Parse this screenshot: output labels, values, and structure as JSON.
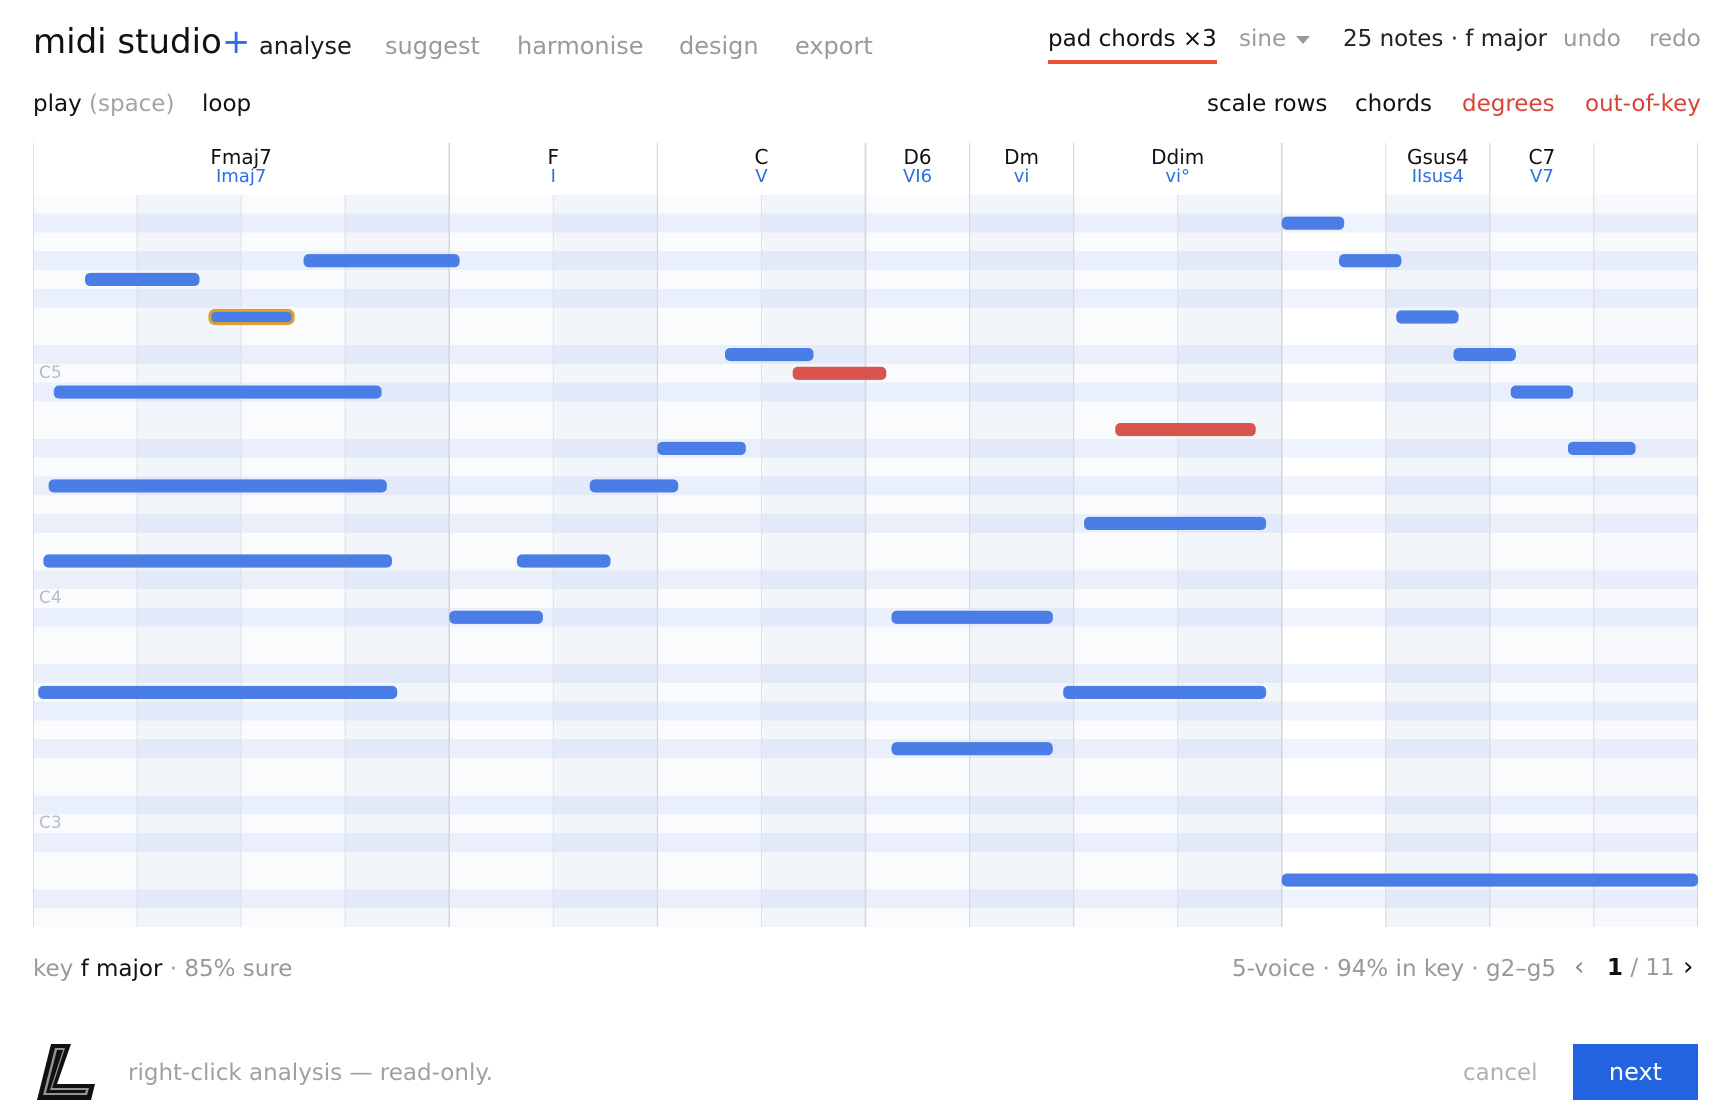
{
  "app": {
    "name": "midi studio",
    "plus": "+"
  },
  "nav": {
    "tabs": [
      {
        "label": "analyse",
        "active": true
      },
      {
        "label": "suggest",
        "active": false
      },
      {
        "label": "harmonise",
        "active": false
      },
      {
        "label": "design",
        "active": false
      },
      {
        "label": "export",
        "active": false
      }
    ]
  },
  "header": {
    "preset": "pad chords ×3",
    "waveform": "sine",
    "status": "25 notes · f major",
    "undo": "undo",
    "redo": "redo"
  },
  "toolbar": {
    "play": "play",
    "play_hint": "(space)",
    "loop": "loop",
    "scale_rows": "scale rows",
    "chords": "chords",
    "degrees": "degrees",
    "out_of_key": "out-of-key"
  },
  "roll": {
    "beats": 16,
    "top_pitch": 81,
    "bottom_pitch": 43,
    "octave_labels": [
      {
        "label": "C5",
        "pitch": 72
      },
      {
        "label": "C4",
        "pitch": 60
      },
      {
        "label": "C3",
        "pitch": 48
      }
    ],
    "chords": [
      {
        "name": "Fmaj7",
        "degree": "Imaj7",
        "start": 0,
        "end": 4
      },
      {
        "name": "F",
        "degree": "I",
        "start": 4,
        "end": 6
      },
      {
        "name": "C",
        "degree": "V",
        "start": 6,
        "end": 8
      },
      {
        "name": "D6",
        "degree": "VI6",
        "start": 8,
        "end": 9
      },
      {
        "name": "Dm",
        "degree": "vi",
        "start": 9,
        "end": 10
      },
      {
        "name": "Ddim",
        "degree": "vi°",
        "start": 10,
        "end": 12
      },
      {
        "name": "Gsus4",
        "degree": "IIsus4",
        "start": 13,
        "end": 14
      },
      {
        "name": "C7",
        "degree": "V7",
        "start": 14,
        "end": 15
      }
    ],
    "notes": [
      {
        "pitch": 80,
        "start": 12.0,
        "end": 12.6
      },
      {
        "pitch": 78,
        "start": 2.6,
        "end": 4.1
      },
      {
        "pitch": 78,
        "start": 12.55,
        "end": 13.15
      },
      {
        "pitch": 77,
        "start": 0.5,
        "end": 1.6
      },
      {
        "pitch": 75,
        "start": 1.7,
        "end": 2.5,
        "selected": true
      },
      {
        "pitch": 75,
        "start": 13.1,
        "end": 13.7
      },
      {
        "pitch": 73,
        "start": 6.65,
        "end": 7.5
      },
      {
        "pitch": 73,
        "start": 13.65,
        "end": 14.25
      },
      {
        "pitch": 72,
        "start": 7.3,
        "end": 8.2,
        "out_of_key": true
      },
      {
        "pitch": 71,
        "start": 0.2,
        "end": 3.35
      },
      {
        "pitch": 71,
        "start": 14.2,
        "end": 14.8
      },
      {
        "pitch": 69,
        "start": 10.4,
        "end": 11.75,
        "out_of_key": true
      },
      {
        "pitch": 68,
        "start": 6.0,
        "end": 6.85
      },
      {
        "pitch": 68,
        "start": 14.75,
        "end": 15.4
      },
      {
        "pitch": 66,
        "start": 0.15,
        "end": 3.4
      },
      {
        "pitch": 66,
        "start": 5.35,
        "end": 6.2
      },
      {
        "pitch": 64,
        "start": 10.1,
        "end": 11.85
      },
      {
        "pitch": 62,
        "start": 0.1,
        "end": 3.45
      },
      {
        "pitch": 62,
        "start": 4.65,
        "end": 5.55
      },
      {
        "pitch": 59,
        "start": 4.0,
        "end": 4.9
      },
      {
        "pitch": 59,
        "start": 8.25,
        "end": 9.8
      },
      {
        "pitch": 55,
        "start": 0.05,
        "end": 3.5
      },
      {
        "pitch": 55,
        "start": 9.9,
        "end": 11.85
      },
      {
        "pitch": 52,
        "start": 8.25,
        "end": 9.8
      },
      {
        "pitch": 45,
        "start": 12.0,
        "end": 16.0
      }
    ]
  },
  "footer": {
    "key_prefix": "key",
    "key_root": "f",
    "key_mode": "major",
    "confidence": "· 85% sure",
    "stats": "5-voice · 94% in key · g2–g5",
    "page_current": "1",
    "page_total": "/ 11",
    "prev": "‹",
    "next": "›"
  },
  "bottom": {
    "hint": "right-click analysis — read-only.",
    "cancel": "cancel",
    "next": "next"
  },
  "colors": {
    "note": "#4a7de6",
    "note_out_of_key": "#d9534f",
    "selected_outline": "#e0a030",
    "accent": "#2f6fe0",
    "underline": "#e8533a"
  }
}
